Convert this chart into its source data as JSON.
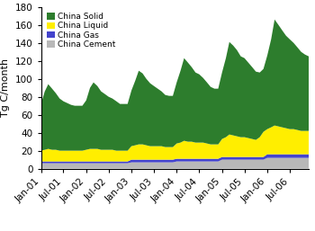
{
  "ylabel": "Tg C/month",
  "ylim": [
    0,
    180
  ],
  "yticks": [
    0,
    20,
    40,
    60,
    80,
    100,
    120,
    140,
    160,
    180
  ],
  "colors": {
    "solid": "#2d7d2d",
    "liquid": "#ffee00",
    "gas": "#4444cc",
    "cement": "#b8b8b8"
  },
  "legend_labels": [
    "China Solid",
    "China Liquid",
    "China Gas",
    "China Cement"
  ],
  "xtick_labels": [
    "Jan-01",
    "Jul-01",
    "Jan-02",
    "Jul-02",
    "Jan-03",
    "Jul-03",
    "Jan-04",
    "Jul-04",
    "Jan-05",
    "Jul-05",
    "Jan-06",
    "Jul-06"
  ],
  "n_months": 72,
  "cement": [
    6,
    6,
    6,
    6,
    6,
    6,
    6,
    6,
    6,
    6,
    6,
    6,
    6,
    6,
    6,
    6,
    6,
    6,
    6,
    6,
    6,
    6,
    6,
    6,
    7,
    7,
    7,
    7,
    7,
    7,
    7,
    7,
    7,
    7,
    7,
    7,
    8,
    8,
    8,
    8,
    8,
    8,
    8,
    8,
    8,
    8,
    8,
    8,
    10,
    10,
    10,
    10,
    10,
    10,
    10,
    10,
    10,
    10,
    10,
    10,
    12,
    12,
    12,
    12,
    12,
    12,
    12,
    12,
    12,
    12,
    12,
    12
  ],
  "gas": [
    2,
    2,
    2,
    2,
    2,
    2,
    2,
    2,
    2,
    2,
    2,
    2,
    2,
    2,
    2,
    2,
    2,
    2,
    2,
    2,
    2,
    2,
    2,
    2,
    3,
    3,
    3,
    3,
    3,
    3,
    3,
    3,
    3,
    3,
    3,
    3,
    3,
    3,
    3,
    3,
    3,
    3,
    3,
    3,
    3,
    3,
    3,
    3,
    3,
    3,
    3,
    3,
    3,
    3,
    3,
    3,
    3,
    3,
    3,
    3,
    4,
    4,
    4,
    4,
    4,
    4,
    4,
    4,
    4,
    4,
    4,
    4
  ],
  "liquid": [
    12,
    13,
    14,
    13,
    13,
    12,
    12,
    12,
    12,
    12,
    12,
    12,
    13,
    14,
    14,
    14,
    13,
    13,
    13,
    13,
    12,
    12,
    12,
    12,
    15,
    16,
    17,
    17,
    16,
    15,
    15,
    15,
    15,
    14,
    14,
    14,
    17,
    18,
    20,
    19,
    19,
    18,
    18,
    18,
    17,
    16,
    16,
    16,
    20,
    22,
    25,
    24,
    23,
    22,
    22,
    21,
    20,
    19,
    22,
    28,
    28,
    30,
    32,
    31,
    30,
    29,
    28,
    28,
    27,
    26,
    26,
    26
  ],
  "solid": [
    52,
    65,
    72,
    68,
    63,
    58,
    55,
    53,
    51,
    50,
    50,
    50,
    55,
    68,
    74,
    70,
    65,
    62,
    59,
    57,
    55,
    52,
    52,
    52,
    62,
    72,
    82,
    79,
    74,
    70,
    67,
    64,
    61,
    58,
    57,
    57,
    68,
    80,
    92,
    88,
    83,
    78,
    76,
    72,
    68,
    64,
    62,
    62,
    74,
    88,
    103,
    100,
    96,
    90,
    88,
    84,
    80,
    76,
    72,
    70,
    82,
    98,
    118,
    113,
    108,
    103,
    100,
    96,
    92,
    88,
    85,
    83
  ]
}
